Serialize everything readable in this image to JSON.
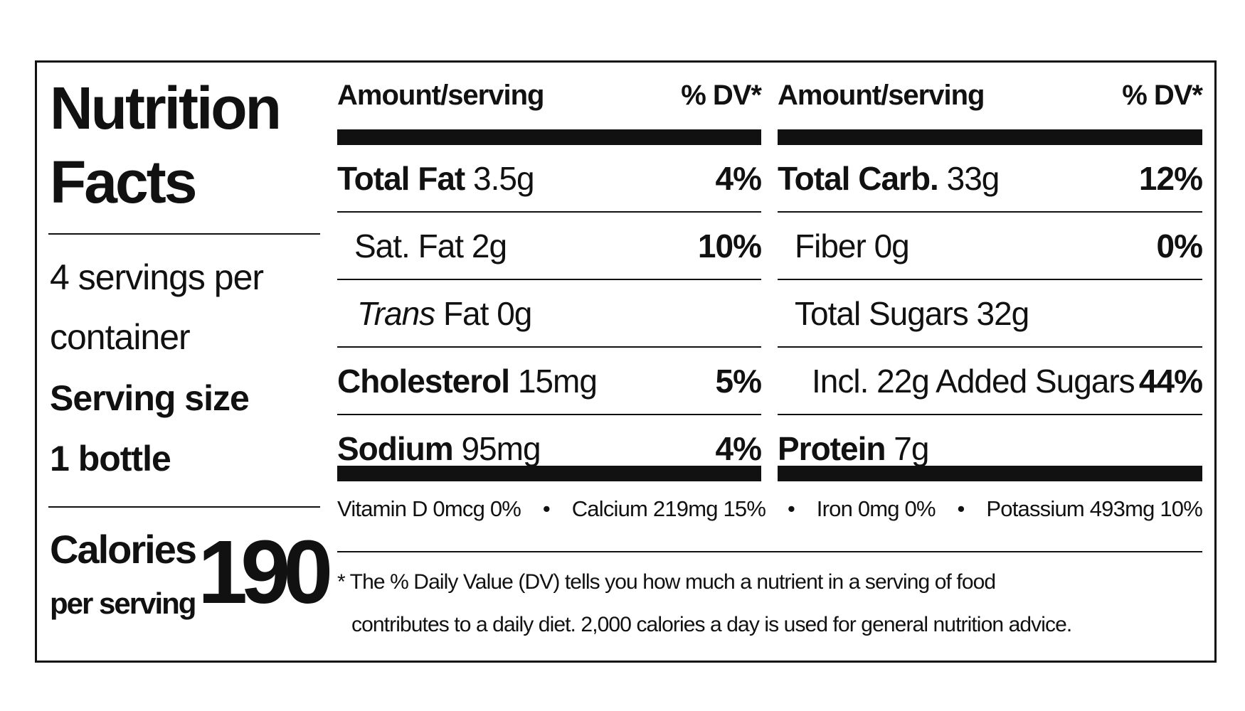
{
  "title": "Nutrition Facts",
  "servings_per_container": "4 servings per container",
  "serving_size_label": "Serving size",
  "serving_size": "1 bottle",
  "calories_label": "Calories",
  "calories_sub": "per serving",
  "calories": "190",
  "columns": [
    {
      "amount_header": "Amount/serving",
      "dv_header": "% DV*",
      "rows": [
        {
          "name": "Total Fat",
          "amount": "3.5g",
          "dv": "4%"
        },
        {
          "name": "Sat. Fat",
          "amount": "2g",
          "dv": "10%"
        },
        {
          "name_italic": "Trans",
          "name": "Fat",
          "amount": "0g"
        },
        {
          "name": "Cholesterol",
          "amount": "15mg",
          "dv": "5%"
        },
        {
          "name": "Sodium",
          "amount": "95mg",
          "dv": "4%"
        }
      ]
    },
    {
      "amount_header": "Amount/serving",
      "dv_header": "% DV*",
      "rows": [
        {
          "name": "Total Carb.",
          "amount": "33g",
          "dv": "12%"
        },
        {
          "name": "Fiber",
          "amount": "0g",
          "dv": "0%"
        },
        {
          "name": "Total Sugars",
          "amount": "32g"
        },
        {
          "name": "Incl. 22g Added Sugars",
          "dv": "44%"
        },
        {
          "name": "Protein",
          "amount": "7g"
        }
      ]
    }
  ],
  "micronutrients": [
    "Vitamin D 0mcg 0%",
    "Calcium 219mg 15%",
    "Iron 0mg 0%",
    "Potassium 493mg 10%"
  ],
  "footnote": [
    "* The % Daily Value (DV) tells you how much a nutrient in a serving of food",
    "contributes to a daily diet. 2,000 calories a day is used for general nutrition advice."
  ]
}
